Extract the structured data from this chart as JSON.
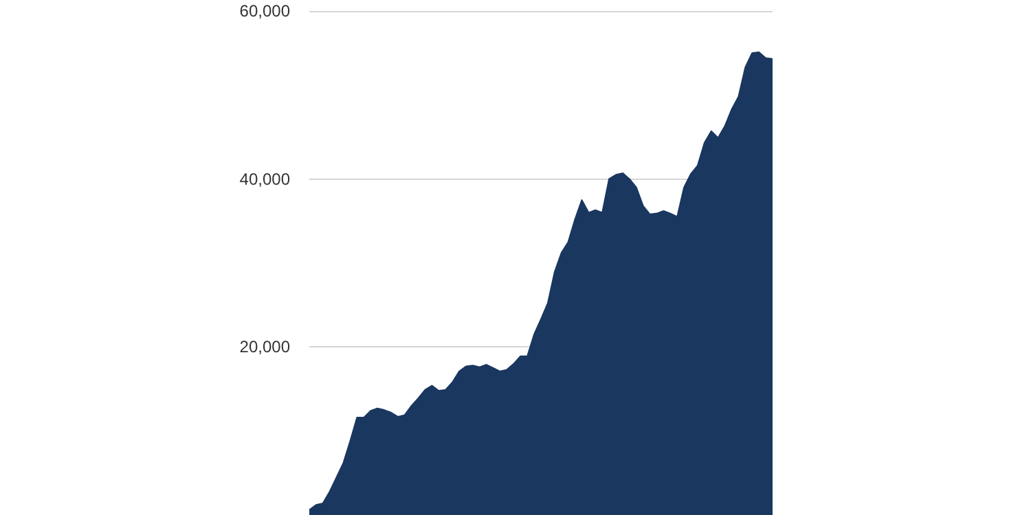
{
  "chart_data": {
    "type": "area",
    "categories": [
      null,
      null,
      null,
      null,
      null,
      null,
      null,
      null,
      null,
      null,
      null,
      null,
      null,
      null,
      null,
      null,
      null,
      null,
      null,
      null,
      null,
      null,
      null,
      null,
      null,
      null,
      null,
      null,
      null,
      null,
      null,
      null,
      null,
      null,
      null,
      null,
      null,
      null,
      null,
      null,
      null,
      null,
      null,
      null,
      null,
      null,
      null,
      null,
      null,
      null,
      null,
      null,
      null,
      null,
      null,
      null,
      null,
      null,
      null,
      null,
      null,
      null,
      null,
      null,
      null,
      null,
      null,
      null,
      null
    ],
    "series": [
      {
        "color": "#1a3760",
        "values": [
          600,
          1200,
          1400,
          2800,
          4500,
          6200,
          8800,
          11600,
          11600,
          12400,
          12700,
          12500,
          12200,
          11700,
          11900,
          13000,
          13900,
          14900,
          15400,
          14800,
          14900,
          15800,
          17100,
          17700,
          17800,
          17600,
          17900,
          17500,
          17100,
          17300,
          18000,
          18900,
          18900,
          21500,
          23300,
          25200,
          28900,
          31200,
          32500,
          35200,
          37500,
          36000,
          36300,
          36000,
          40000,
          40500,
          40700,
          40000,
          39000,
          36800,
          35800,
          35900,
          36200,
          35900,
          35500,
          39000,
          40600,
          41600,
          44300,
          45700,
          44900,
          46300,
          48300,
          49800,
          53300,
          55000,
          55100,
          54400,
          54300
        ]
      }
    ],
    "ylim": [
      0,
      60000
    ],
    "yticks": [
      {
        "value": 20000,
        "label": "20,000"
      },
      {
        "value": 40000,
        "label": "40,000"
      },
      {
        "value": 60000,
        "label": "60,000"
      }
    ],
    "grid": "y",
    "tick_labels": "y"
  }
}
